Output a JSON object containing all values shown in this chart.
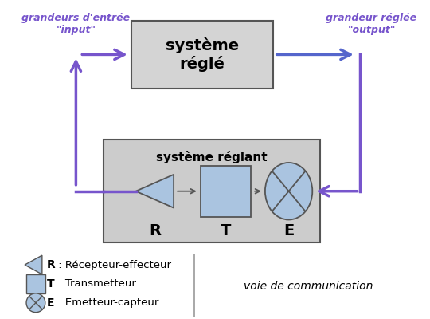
{
  "bg_color": "#ffffff",
  "purple_color": "#7755cc",
  "blue_arrow_color": "#5566cc",
  "box_fill": "#d4d4d4",
  "box_edge": "#555555",
  "reglant_fill": "#cccccc",
  "light_blue": "#aac4e0",
  "title_systeme_regle": "système\nréglé",
  "title_systeme_reglant": "système réglant",
  "label_input_line1": "grandeurs d'entrée",
  "label_input_line2": "\"input\"",
  "label_output_line1": "grandeur réglée",
  "label_output_line2": "\"output\"",
  "legend_R": " : Récepteur-effecteur",
  "legend_T": " : Transmetteur",
  "legend_E": " : Emetteur-capteur",
  "legend_voie": "voie de communication"
}
